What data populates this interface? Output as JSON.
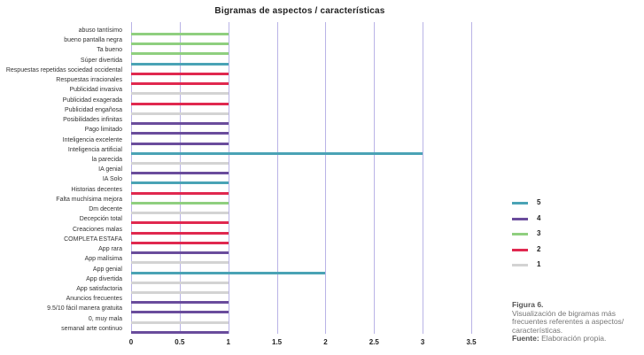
{
  "chart_data": {
    "type": "bar",
    "orientation": "horizontal",
    "title": "Bigramas de aspectos / características",
    "xlabel": "",
    "ylabel": "",
    "xlim": [
      0,
      3.5
    ],
    "x_ticks": [
      "0",
      "0.5",
      "1",
      "1.5",
      "2",
      "2.5",
      "3",
      "3.5"
    ],
    "grid": true,
    "legend_position": "right",
    "legend": [
      {
        "label": "5",
        "color": "#4aa3b5"
      },
      {
        "label": "4",
        "color": "#6a4c9c"
      },
      {
        "label": "3",
        "color": "#8fcf7f"
      },
      {
        "label": "2",
        "color": "#e0284f"
      },
      {
        "label": "1",
        "color": "#d3d3d3"
      }
    ],
    "categories": [
      "abuso tantísimo",
      "bueno pantalla negra",
      "Ta bueno",
      "Súper divertida",
      "Respuestas repetidas sociedad occidental",
      "Respuestas irracionales",
      "Publicidad invasiva",
      "Publicidad exagerada",
      "Publicidad engañosa",
      "Posibilidades infinitas",
      "Pago limitado",
      "Inteligencia excelente",
      "Inteligencia artificial",
      "la parecida",
      "IA genial",
      "IA Solo",
      "Historias decentes",
      "Falta muchísima mejora",
      "Dm decente",
      "Decepción total",
      "Creaciones malas",
      "COMPLETA ESTAFA",
      "App rara",
      "App malísima",
      "App genial",
      "App divertida",
      "App satisfactoria",
      "Anuncios frecuentes",
      "9.5/10 fácil manera gratuita",
      "0, muy mala",
      "semanal arte continuo"
    ],
    "values": [
      1,
      1,
      1,
      1,
      1,
      1,
      1,
      1,
      1,
      1,
      1,
      1,
      3,
      1,
      1,
      1,
      1,
      1,
      1,
      1,
      1,
      1,
      1,
      1,
      2,
      1,
      1,
      1,
      1,
      1,
      1
    ],
    "rating": [
      "3",
      "3",
      "3",
      "5",
      "2",
      "2",
      "1",
      "2",
      "1",
      "4",
      "4",
      "4",
      "5",
      "1",
      "4",
      "5",
      "2",
      "3",
      "1",
      "2",
      "2",
      "2",
      "4",
      "1",
      "5",
      "1",
      "1",
      "4",
      "4",
      "1",
      "4"
    ]
  },
  "caption": {
    "figure": "Figura 6.",
    "description": "Visualización de bigramas más frecuentes referentes a aspectos/ características.",
    "source_label": "Fuente:",
    "source_text": " Elaboración propia."
  }
}
